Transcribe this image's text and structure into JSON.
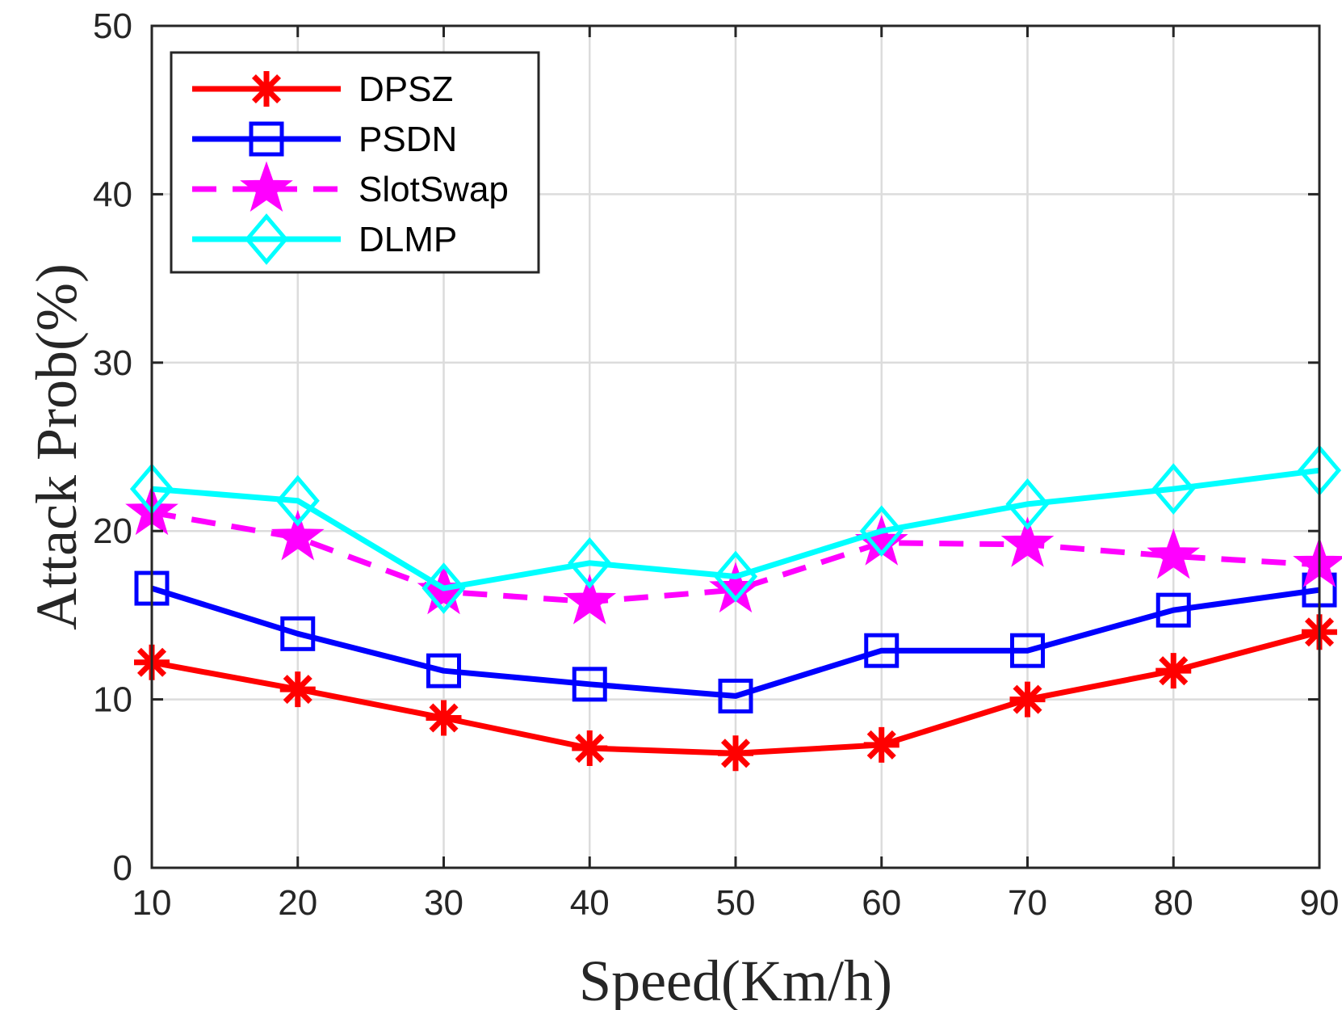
{
  "chart_data": {
    "type": "line",
    "xlabel": "Speed(Km/h)",
    "ylabel": "Attack Prob(%)",
    "x": [
      10,
      20,
      30,
      40,
      50,
      60,
      70,
      80,
      90
    ],
    "xlim": [
      10,
      90
    ],
    "ylim": [
      0,
      50
    ],
    "xticks": [
      "10",
      "20",
      "30",
      "40",
      "50",
      "60",
      "70",
      "80",
      "90"
    ],
    "yticks": [
      "0",
      "10",
      "20",
      "30",
      "40",
      "50"
    ],
    "grid": true,
    "legend_position": "top-left",
    "series": [
      {
        "name": "DPSZ",
        "color": "#ff0000",
        "marker": "asterisk",
        "dash": "solid",
        "values": [
          12.2,
          10.6,
          8.9,
          7.1,
          6.8,
          7.3,
          10.0,
          11.7,
          14.0
        ]
      },
      {
        "name": "PSDN",
        "color": "#0000ff",
        "marker": "square",
        "dash": "solid",
        "values": [
          16.6,
          13.9,
          11.7,
          10.9,
          10.2,
          12.9,
          12.9,
          15.3,
          16.5
        ]
      },
      {
        "name": "SlotSwap",
        "color": "#ff00ff",
        "marker": "star",
        "dash": "dashed",
        "values": [
          21.1,
          19.6,
          16.4,
          15.8,
          16.5,
          19.3,
          19.2,
          18.5,
          18.0
        ]
      },
      {
        "name": "DLMP",
        "color": "#00ffff",
        "marker": "diamond",
        "dash": "solid",
        "values": [
          22.5,
          21.8,
          16.6,
          18.1,
          17.3,
          20.0,
          21.6,
          22.5,
          23.6
        ]
      }
    ]
  }
}
